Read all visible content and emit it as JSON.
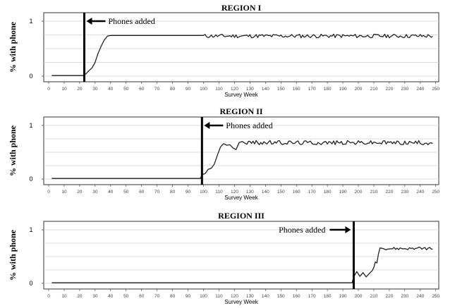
{
  "chart_data": [
    {
      "type": "line",
      "title": "REGION I",
      "xlabel": "Survey Week",
      "ylabel": "% with phone",
      "xlim": [
        0,
        252
      ],
      "ylim": [
        0,
        1
      ],
      "x_ticks": [
        0,
        10,
        20,
        30,
        40,
        50,
        60,
        70,
        80,
        90,
        100,
        110,
        120,
        130,
        140,
        150,
        160,
        170,
        180,
        190,
        200,
        210,
        220,
        230,
        240,
        250
      ],
      "y_ticks": [
        0,
        1
      ],
      "grid": true,
      "marker_week": 23,
      "annotation": "Phones added",
      "segments": [
        [
          2,
          0.01
        ],
        [
          22,
          0.01
        ],
        [
          24,
          0.04
        ],
        [
          26,
          0.1
        ],
        [
          28,
          0.15
        ],
        [
          30,
          0.25
        ],
        [
          32,
          0.42
        ],
        [
          34,
          0.55
        ],
        [
          36,
          0.66
        ],
        [
          38,
          0.73
        ],
        [
          40,
          0.74
        ],
        [
          98,
          0.74
        ]
      ],
      "plateau": {
        "from": 100,
        "to": 248,
        "level": 0.73,
        "amp": 0.035
      }
    },
    {
      "type": "line",
      "title": "REGION II",
      "xlabel": "Survey Week",
      "ylabel": "% with phone",
      "xlim": [
        0,
        252
      ],
      "ylim": [
        0,
        1
      ],
      "x_ticks": [
        0,
        10,
        20,
        30,
        40,
        50,
        60,
        70,
        80,
        90,
        100,
        110,
        120,
        130,
        140,
        150,
        160,
        170,
        180,
        190,
        200,
        210,
        220,
        230,
        240,
        250
      ],
      "y_ticks": [
        0,
        1
      ],
      "grid": true,
      "marker_week": 99,
      "annotation": "Phones added",
      "segments": [
        [
          2,
          0.01
        ],
        [
          98,
          0.01
        ],
        [
          99,
          0.08
        ],
        [
          101,
          0.1
        ],
        [
          103,
          0.18
        ],
        [
          105,
          0.2
        ],
        [
          107,
          0.28
        ],
        [
          109,
          0.45
        ],
        [
          111,
          0.6
        ],
        [
          113,
          0.66
        ],
        [
          115,
          0.63
        ],
        [
          117,
          0.64
        ],
        [
          119,
          0.58
        ],
        [
          121,
          0.55
        ],
        [
          123,
          0.68
        ],
        [
          125,
          0.7
        ]
      ],
      "plateau": {
        "from": 127,
        "to": 248,
        "level": 0.68,
        "amp": 0.04
      }
    },
    {
      "type": "line",
      "title": "REGION III",
      "xlabel": "Survey Week",
      "ylabel": "% with phone",
      "xlim": [
        0,
        252
      ],
      "ylim": [
        0,
        1
      ],
      "x_ticks": [
        0,
        10,
        20,
        30,
        40,
        50,
        60,
        70,
        80,
        90,
        100,
        110,
        120,
        130,
        140,
        150,
        160,
        170,
        180,
        190,
        200,
        210,
        220,
        230,
        240,
        250
      ],
      "y_ticks": [
        0,
        1
      ],
      "grid": true,
      "marker_week": 197,
      "annotation": "Phones added",
      "segments": [
        [
          2,
          0.01
        ],
        [
          196,
          0.01
        ],
        [
          197,
          0.12
        ],
        [
          199,
          0.22
        ],
        [
          201,
          0.13
        ],
        [
          203,
          0.2
        ],
        [
          205,
          0.12
        ],
        [
          207,
          0.18
        ],
        [
          209,
          0.24
        ],
        [
          210,
          0.3
        ],
        [
          211,
          0.4
        ],
        [
          212,
          0.38
        ],
        [
          213,
          0.55
        ],
        [
          214,
          0.66
        ],
        [
          216,
          0.65
        ]
      ],
      "plateau": {
        "from": 218,
        "to": 248,
        "level": 0.65,
        "amp": 0.025
      }
    }
  ]
}
